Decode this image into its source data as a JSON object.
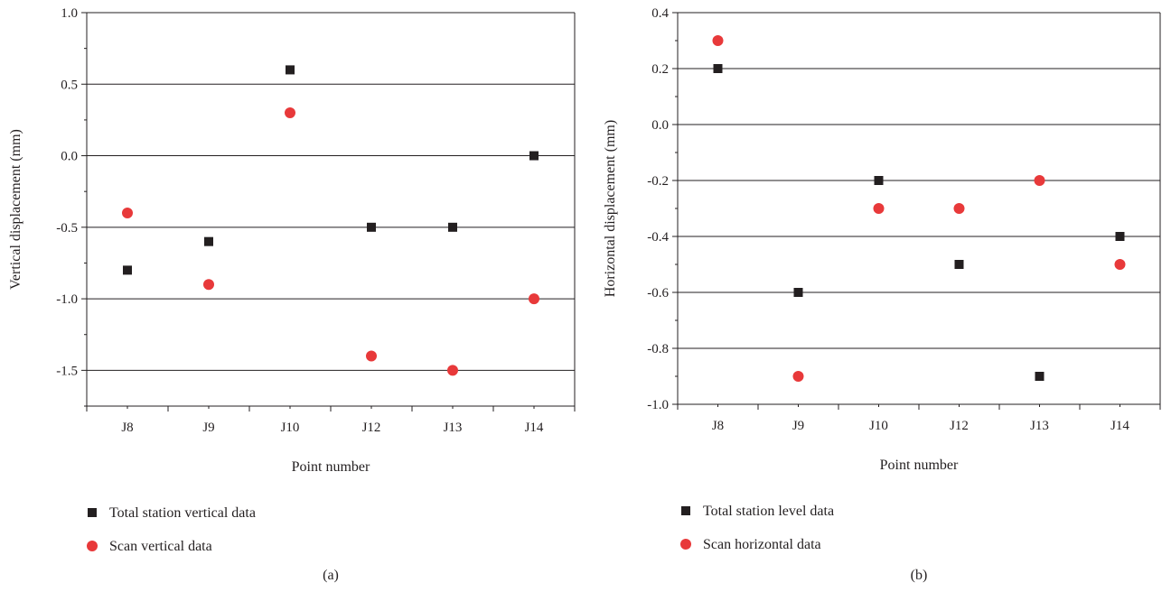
{
  "chart_data": [
    {
      "type": "scatter",
      "caption": "(a)",
      "xlabel": "Point number",
      "ylabel": "Vertical displacement (mm)",
      "categories": [
        "J8",
        "J9",
        "J10",
        "J12",
        "J13",
        "J14"
      ],
      "ylim": [
        -1.75,
        1.0
      ],
      "yticks": [
        1.0,
        0.5,
        0.0,
        -0.5,
        -1.0,
        -1.5
      ],
      "ytick_labels": [
        "1.0",
        "0.5",
        "0.0",
        "-0.5",
        "-1.0",
        "-1.5"
      ],
      "grid_lines": [
        0.5,
        0.0,
        -0.5,
        -1.0,
        -1.5
      ],
      "series": [
        {
          "name": "Total station vertical data",
          "marker": "square",
          "color": "#231f20",
          "values": [
            -0.8,
            -0.6,
            0.6,
            -0.5,
            -0.5,
            0.0
          ]
        },
        {
          "name": "Scan vertical data",
          "marker": "circle",
          "color": "#e8393a",
          "values": [
            -0.4,
            -0.9,
            0.3,
            -1.4,
            -1.5,
            -1.0
          ]
        }
      ]
    },
    {
      "type": "scatter",
      "caption": "(b)",
      "xlabel": "Point number",
      "ylabel": "Horizontal displacement (mm)",
      "categories": [
        "J8",
        "J9",
        "J10",
        "J12",
        "J13",
        "J14"
      ],
      "ylim": [
        -1.0,
        0.4
      ],
      "yticks": [
        0.4,
        0.2,
        0.0,
        -0.2,
        -0.4,
        -0.6,
        -0.8,
        -1.0
      ],
      "ytick_labels": [
        "0.4",
        "0.2",
        "0.0",
        "-0.2",
        "-0.4",
        "-0.6",
        "-0.8",
        "-1.0"
      ],
      "grid_lines": [
        0.2,
        0.0,
        -0.2,
        -0.4,
        -0.6,
        -0.8
      ],
      "series": [
        {
          "name": "Total station level data",
          "marker": "square",
          "color": "#231f20",
          "values": [
            0.2,
            -0.6,
            -0.2,
            -0.5,
            -0.9,
            -0.4
          ]
        },
        {
          "name": "Scan horizontal data",
          "marker": "circle",
          "color": "#e8393a",
          "values": [
            0.3,
            -0.9,
            -0.3,
            -0.3,
            -0.2,
            -0.5
          ]
        }
      ]
    }
  ]
}
